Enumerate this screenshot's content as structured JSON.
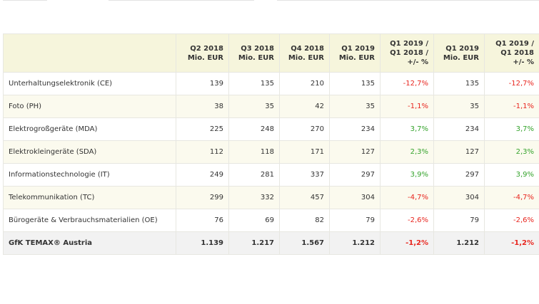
{
  "table": {
    "headers": [
      "",
      "Q2 2018\nMio. EUR",
      "Q3 2018\nMio. EUR",
      "Q4 2018\nMio. EUR",
      "Q1 2019\nMio. EUR",
      "Q1 2019 /\nQ1 2018 /\n+/- %",
      "Q1 2019\nMio. EUR",
      "Q1 2019 /\nQ1 2018\n+/- %"
    ],
    "rows": [
      {
        "category": "Unterhaltungselektronik (CE)",
        "q2_2018": "139",
        "q3_2018": "135",
        "q4_2018": "210",
        "q1_2019": "135",
        "change_a": "-12,7%",
        "q1_2019_b": "135",
        "change_b": "-12,7%",
        "trend": "neg"
      },
      {
        "category": "Foto (PH)",
        "q2_2018": "38",
        "q3_2018": "35",
        "q4_2018": "42",
        "q1_2019": "35",
        "change_a": "-1,1%",
        "q1_2019_b": "35",
        "change_b": "-1,1%",
        "trend": "neg"
      },
      {
        "category": "Elektrogroßgeräte (MDA)",
        "q2_2018": "225",
        "q3_2018": "248",
        "q4_2018": "270",
        "q1_2019": "234",
        "change_a": "3,7%",
        "q1_2019_b": "234",
        "change_b": "3,7%",
        "trend": "pos"
      },
      {
        "category": "Elektrokleingeräte (SDA)",
        "q2_2018": "112",
        "q3_2018": "118",
        "q4_2018": "171",
        "q1_2019": "127",
        "change_a": "2,3%",
        "q1_2019_b": "127",
        "change_b": "2,3%",
        "trend": "pos"
      },
      {
        "category": "Informationstechnologie (IT)",
        "q2_2018": "249",
        "q3_2018": "281",
        "q4_2018": "337",
        "q1_2019": "297",
        "change_a": "3,9%",
        "q1_2019_b": "297",
        "change_b": "3,9%",
        "trend": "pos"
      },
      {
        "category": "Telekommunikation (TC)",
        "q2_2018": "299",
        "q3_2018": "332",
        "q4_2018": "457",
        "q1_2019": "304",
        "change_a": "-4,7%",
        "q1_2019_b": "304",
        "change_b": "-4,7%",
        "trend": "neg"
      },
      {
        "category": "Bürogeräte & Verbrauchsmaterialien (OE)",
        "q2_2018": "76",
        "q3_2018": "69",
        "q4_2018": "82",
        "q1_2019": "79",
        "change_a": "-2,6%",
        "q1_2019_b": "79",
        "change_b": "-2,6%",
        "trend": "neg"
      }
    ],
    "total": {
      "category": "GfK TEMAX® Austria",
      "q2_2018": "1.139",
      "q3_2018": "1.217",
      "q4_2018": "1.567",
      "q1_2019": "1.212",
      "change_a": "-1,2%",
      "q1_2019_b": "1.212",
      "change_b": "-1,2%",
      "trend": "neg"
    }
  },
  "colors": {
    "header_bg": "#f6f5dc",
    "stripe_bg": "#fbfaee",
    "total_bg": "#f2f2f2",
    "negative": "#e8261f",
    "positive": "#35a32c"
  }
}
